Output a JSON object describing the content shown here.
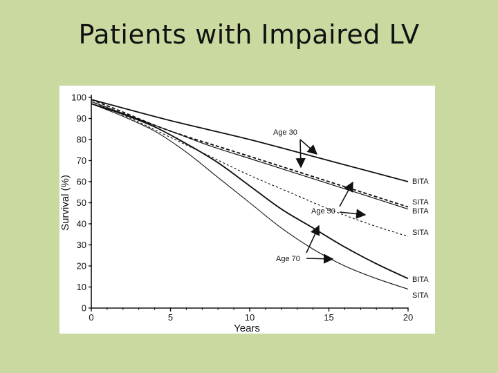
{
  "slide": {
    "title": "Patients with Impaired LV"
  },
  "chart_data": {
    "type": "line",
    "xlabel": "Years",
    "ylabel": "Survival (%)",
    "xlim": [
      0,
      20
    ],
    "ylim": [
      0,
      100
    ],
    "xticks": [
      0,
      5,
      10,
      15,
      20
    ],
    "yticks": [
      0,
      10,
      20,
      30,
      40,
      50,
      60,
      70,
      80,
      90,
      100
    ],
    "grid": false,
    "series": [
      {
        "name": "BITA",
        "group": "Age 30",
        "style": "solid",
        "x": [
          0,
          5,
          10,
          15,
          20
        ],
        "y": [
          99,
          89,
          80,
          70,
          60
        ]
      },
      {
        "name": "SITA",
        "group": "Age 30",
        "style": "dashed",
        "x": [
          0,
          2,
          5,
          10,
          15,
          20
        ],
        "y": [
          99,
          93,
          84,
          72,
          60,
          48
        ]
      },
      {
        "name": "BITA",
        "group": "Age 50",
        "style": "solid",
        "x": [
          0,
          2.5,
          5,
          7.5,
          10,
          12.5,
          15,
          17.5,
          20
        ],
        "y": [
          98,
          91,
          84,
          77,
          71,
          65,
          59,
          53,
          47
        ]
      },
      {
        "name": "SITA",
        "group": "Age 50",
        "style": "dashed",
        "x": [
          0,
          2.5,
          5,
          7.5,
          10,
          12.5,
          15,
          17.5,
          20
        ],
        "y": [
          98,
          90,
          81,
          72,
          63,
          55,
          47,
          40,
          34
        ]
      },
      {
        "name": "BITA",
        "group": "Age 70",
        "style": "solid",
        "x": [
          0,
          2,
          4,
          6,
          8,
          10,
          12,
          14,
          16,
          18,
          20
        ],
        "y": [
          97,
          92,
          86,
          78,
          69,
          58,
          47,
          38,
          29,
          21,
          14
        ]
      },
      {
        "name": "SITA",
        "group": "Age 70",
        "style": "solid",
        "x": [
          0,
          2,
          4,
          6,
          8,
          10,
          12,
          14,
          16,
          18,
          20
        ],
        "y": [
          97,
          91,
          84,
          74,
          62,
          50,
          38,
          28,
          20,
          14,
          9
        ]
      }
    ],
    "annotations": [
      {
        "text": "Age 30"
      },
      {
        "text": "Age 50"
      },
      {
        "text": "Age 70"
      }
    ],
    "end_labels": [
      "BITA",
      "SITA",
      "BITA",
      "SITA",
      "BITA",
      "SITA"
    ]
  }
}
